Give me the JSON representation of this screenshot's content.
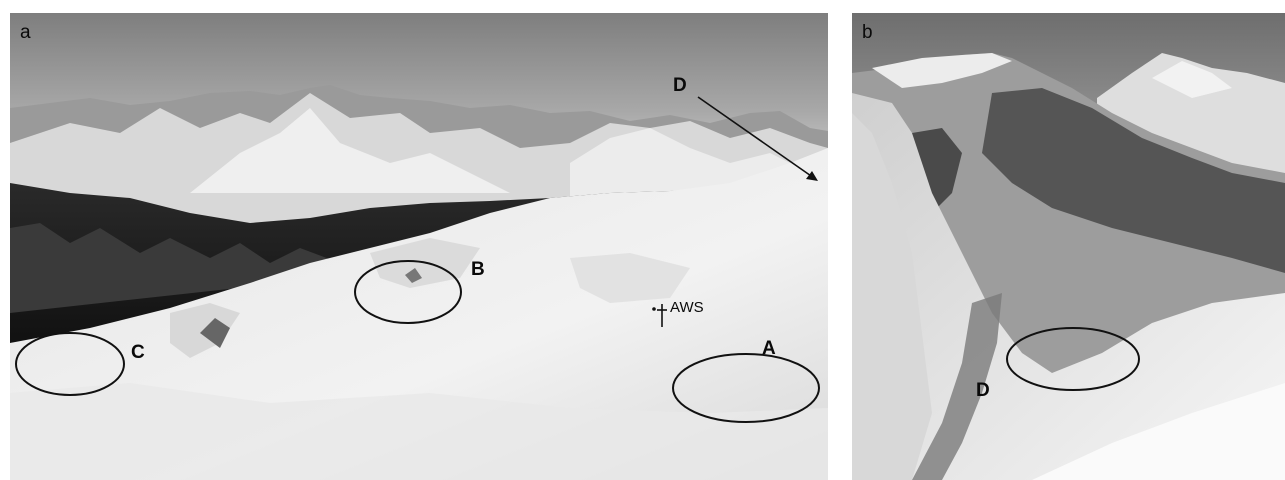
{
  "panels": {
    "a": {
      "label": "a",
      "annotations": {
        "A": "A",
        "B": "B",
        "C": "C",
        "D": "D",
        "aws": "AWS"
      }
    },
    "b": {
      "label": "b",
      "annotations": {
        "D": "D"
      }
    }
  }
}
